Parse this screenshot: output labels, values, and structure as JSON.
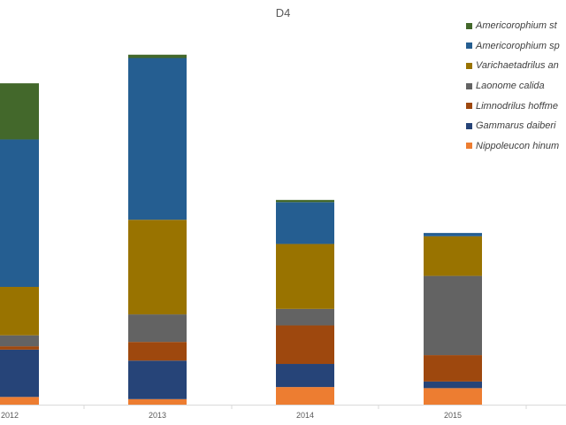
{
  "chart_data": {
    "type": "bar",
    "stacked": true,
    "title": "D4",
    "xlabel": "",
    "ylabel": "",
    "categories": [
      "2012",
      "2013",
      "2014",
      "2015"
    ],
    "ylim": [
      0,
      350
    ],
    "grid": false,
    "legend_position": "right",
    "series": [
      {
        "name": "Nippoleucon hinum",
        "color": "#ED7D31",
        "values": [
          7,
          5,
          16,
          15
        ]
      },
      {
        "name": "Gammarus daiberi",
        "color": "#264478",
        "values": [
          43,
          35,
          21,
          6
        ]
      },
      {
        "name": "Limnodrilus hoffme",
        "color": "#9E480E",
        "values": [
          3,
          17,
          35,
          24
        ]
      },
      {
        "name": "Laonome calida",
        "color": "#636363",
        "values": [
          10,
          25,
          15,
          72
        ]
      },
      {
        "name": "Varichaetadrilus an",
        "color": "#997300",
        "values": [
          44,
          86,
          59,
          36
        ]
      },
      {
        "name": "Americorophium sp",
        "color": "#255E91",
        "values": [
          134,
          147,
          38,
          3
        ]
      },
      {
        "name": "Americorophium st",
        "color": "#43682B",
        "values": [
          51,
          3,
          2,
          0
        ]
      }
    ]
  }
}
